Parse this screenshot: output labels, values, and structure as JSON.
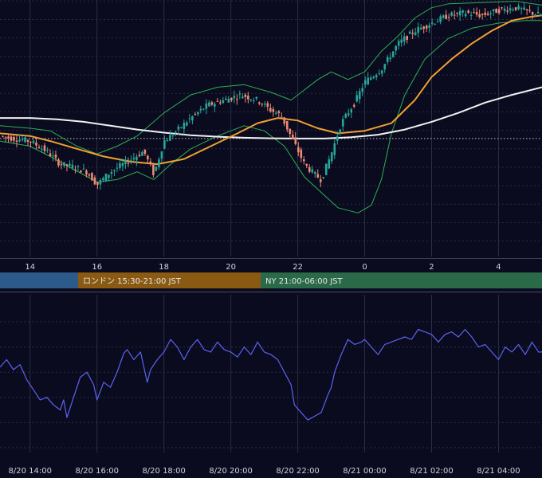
{
  "colors": {
    "background": "#0a0b1e",
    "grid": "#2a2d45",
    "candle_up": "#26a69a",
    "candle_down": "#ef8a74",
    "bollinger": "#2fae55",
    "ma_short": "#f0a030",
    "ma_long": "#f2f2f2",
    "oscillator": "#5b63f0",
    "session_tokyo": "#2c5a8a",
    "session_london": "#8a5a12",
    "session_ny": "#2a6a48"
  },
  "sessions": [
    {
      "label": "",
      "color": "#2c5a8a"
    },
    {
      "label": "ロンドン 15:30-21:00 JST",
      "color": "#8a5a12"
    },
    {
      "label": "NY 21:00-06:00 JST",
      "color": "#2a6a48"
    }
  ],
  "chart_data": [
    {
      "type": "candlestick",
      "title": "",
      "x_tick_labels": [
        "14",
        "16",
        "18",
        "20",
        "22",
        "0",
        "2",
        "4"
      ],
      "x_tick_hours": [
        14,
        16,
        18,
        20,
        22,
        24,
        26,
        28
      ],
      "x_range": [
        13.1,
        29.3
      ],
      "y_range": [
        0,
        100
      ],
      "grid": true,
      "reference_line_level": 46,
      "series": [
        {
          "name": "",
          "kind": "candle_close_path",
          "points": [
            [
              13.1,
              47
            ],
            [
              13.5,
              46
            ],
            [
              14.0,
              45
            ],
            [
              14.5,
              41
            ],
            [
              14.9,
              36
            ],
            [
              15.3,
              35
            ],
            [
              15.7,
              33
            ],
            [
              16.0,
              28
            ],
            [
              16.4,
              33
            ],
            [
              16.9,
              37
            ],
            [
              17.4,
              41
            ],
            [
              17.7,
              32
            ],
            [
              18.0,
              45
            ],
            [
              18.3,
              48
            ],
            [
              18.8,
              54
            ],
            [
              19.3,
              59
            ],
            [
              19.8,
              61
            ],
            [
              20.3,
              63
            ],
            [
              20.8,
              61
            ],
            [
              21.2,
              57
            ],
            [
              21.5,
              55
            ],
            [
              21.9,
              44
            ],
            [
              22.2,
              36
            ],
            [
              22.5,
              32
            ],
            [
              22.7,
              30
            ],
            [
              23.0,
              40
            ],
            [
              23.3,
              52
            ],
            [
              23.7,
              60
            ],
            [
              24.0,
              68
            ],
            [
              24.5,
              73
            ],
            [
              25.0,
              83
            ],
            [
              25.5,
              88
            ],
            [
              26.0,
              91
            ],
            [
              26.5,
              94
            ],
            [
              27.0,
              95
            ],
            [
              27.5,
              94
            ],
            [
              28.0,
              96
            ],
            [
              28.5,
              97
            ],
            [
              29.0,
              95
            ],
            [
              29.3,
              94
            ]
          ]
        },
        {
          "name": "",
          "kind": "bollinger_upper",
          "points": [
            [
              13.1,
              51
            ],
            [
              14.0,
              50
            ],
            [
              14.6,
              49
            ],
            [
              15.4,
              43
            ],
            [
              16.0,
              40
            ],
            [
              16.6,
              43
            ],
            [
              17.2,
              47
            ],
            [
              18.0,
              56
            ],
            [
              18.8,
              63
            ],
            [
              19.6,
              66
            ],
            [
              20.4,
              67
            ],
            [
              21.2,
              64
            ],
            [
              21.8,
              61
            ],
            [
              22.6,
              69
            ],
            [
              23.0,
              72
            ],
            [
              23.5,
              69
            ],
            [
              24.0,
              72
            ],
            [
              24.5,
              80
            ],
            [
              25.0,
              86
            ],
            [
              25.5,
              93
            ],
            [
              26.0,
              97
            ],
            [
              26.5,
              98.5
            ],
            [
              27.5,
              99
            ],
            [
              28.5,
              99.5
            ],
            [
              29.3,
              98
            ]
          ]
        },
        {
          "name": "",
          "kind": "bollinger_lower",
          "points": [
            [
              13.1,
              45
            ],
            [
              14.0,
              43
            ],
            [
              14.6,
              39
            ],
            [
              15.3,
              34
            ],
            [
              16.0,
              29
            ],
            [
              16.6,
              30
            ],
            [
              17.2,
              33
            ],
            [
              17.7,
              30
            ],
            [
              18.2,
              36
            ],
            [
              18.8,
              42
            ],
            [
              19.6,
              47
            ],
            [
              20.4,
              51
            ],
            [
              21.0,
              49
            ],
            [
              21.6,
              43
            ],
            [
              22.2,
              31
            ],
            [
              22.7,
              25
            ],
            [
              23.2,
              19
            ],
            [
              23.8,
              17
            ],
            [
              24.2,
              20
            ],
            [
              24.5,
              30
            ],
            [
              24.8,
              48
            ],
            [
              25.2,
              63
            ],
            [
              25.8,
              77
            ],
            [
              26.5,
              85
            ],
            [
              27.2,
              89
            ],
            [
              28.0,
              91
            ],
            [
              28.8,
              92
            ],
            [
              29.3,
              92
            ]
          ]
        },
        {
          "name": "",
          "kind": "ma_short",
          "points": [
            [
              13.1,
              48
            ],
            [
              14.0,
              47
            ],
            [
              14.6,
              45
            ],
            [
              15.4,
              42
            ],
            [
              16.2,
              39
            ],
            [
              17.0,
              37
            ],
            [
              17.8,
              36
            ],
            [
              18.6,
              38
            ],
            [
              19.4,
              43
            ],
            [
              20.2,
              48
            ],
            [
              20.8,
              52
            ],
            [
              21.4,
              54
            ],
            [
              22.0,
              53
            ],
            [
              22.6,
              50
            ],
            [
              23.2,
              48
            ],
            [
              24.0,
              49
            ],
            [
              24.8,
              52
            ],
            [
              25.5,
              61
            ],
            [
              26.0,
              70
            ],
            [
              26.6,
              77
            ],
            [
              27.2,
              83
            ],
            [
              27.8,
              88
            ],
            [
              28.4,
              92
            ],
            [
              29.0,
              93.5
            ],
            [
              29.3,
              94
            ]
          ]
        },
        {
          "name": "",
          "kind": "ma_long",
          "points": [
            [
              13.1,
              54
            ],
            [
              14.0,
              54
            ],
            [
              14.8,
              53.5
            ],
            [
              15.6,
              52.5
            ],
            [
              16.4,
              51
            ],
            [
              17.2,
              49.5
            ],
            [
              18.0,
              48.3
            ],
            [
              18.8,
              47.3
            ],
            [
              19.6,
              46.7
            ],
            [
              20.4,
              46.3
            ],
            [
              21.2,
              46.1
            ],
            [
              22.0,
              46
            ],
            [
              22.8,
              46
            ],
            [
              23.6,
              46.5
            ],
            [
              24.4,
              47.5
            ],
            [
              25.2,
              49.5
            ],
            [
              26.0,
              52.5
            ],
            [
              26.8,
              56
            ],
            [
              27.6,
              60
            ],
            [
              28.4,
              63
            ],
            [
              29.3,
              66
            ]
          ]
        }
      ]
    },
    {
      "type": "line",
      "title": "",
      "x_tick_labels": [
        "8/20 14:00",
        "8/20 16:00",
        "8/20 18:00",
        "8/20 20:00",
        "8/20 22:00",
        "8/21 00:00",
        "8/21 02:00",
        "8/21 04:00"
      ],
      "x_tick_hours": [
        14,
        16,
        18,
        20,
        22,
        24,
        26,
        28
      ],
      "x_range": [
        13.1,
        29.3
      ],
      "y_range": [
        0,
        100
      ],
      "grid": true,
      "series": [
        {
          "name": "",
          "points": [
            [
              13.1,
              64
            ],
            [
              13.3,
              70
            ],
            [
              13.5,
              62
            ],
            [
              13.7,
              66
            ],
            [
              13.9,
              54
            ],
            [
              14.1,
              46
            ],
            [
              14.3,
              38
            ],
            [
              14.5,
              40
            ],
            [
              14.7,
              34
            ],
            [
              14.9,
              30
            ],
            [
              15.0,
              38
            ],
            [
              15.1,
              24
            ],
            [
              15.3,
              40
            ],
            [
              15.5,
              56
            ],
            [
              15.7,
              60
            ],
            [
              15.9,
              50
            ],
            [
              16.0,
              38
            ],
            [
              16.2,
              52
            ],
            [
              16.4,
              48
            ],
            [
              16.6,
              60
            ],
            [
              16.8,
              75
            ],
            [
              16.9,
              78
            ],
            [
              17.1,
              70
            ],
            [
              17.3,
              76
            ],
            [
              17.5,
              52
            ],
            [
              17.6,
              62
            ],
            [
              17.8,
              70
            ],
            [
              18.0,
              76
            ],
            [
              18.2,
              86
            ],
            [
              18.4,
              80
            ],
            [
              18.6,
              70
            ],
            [
              18.8,
              80
            ],
            [
              19.0,
              86
            ],
            [
              19.2,
              78
            ],
            [
              19.4,
              76
            ],
            [
              19.6,
              84
            ],
            [
              19.8,
              78
            ],
            [
              20.0,
              76
            ],
            [
              20.2,
              72
            ],
            [
              20.4,
              80
            ],
            [
              20.6,
              74
            ],
            [
              20.8,
              84
            ],
            [
              21.0,
              76
            ],
            [
              21.2,
              74
            ],
            [
              21.4,
              70
            ],
            [
              21.6,
              60
            ],
            [
              21.8,
              50
            ],
            [
              21.9,
              34
            ],
            [
              22.1,
              28
            ],
            [
              22.3,
              22
            ],
            [
              22.5,
              25
            ],
            [
              22.7,
              28
            ],
            [
              22.9,
              42
            ],
            [
              23.0,
              48
            ],
            [
              23.1,
              60
            ],
            [
              23.3,
              74
            ],
            [
              23.5,
              86
            ],
            [
              23.7,
              82
            ],
            [
              23.9,
              84
            ],
            [
              24.0,
              86
            ],
            [
              24.2,
              80
            ],
            [
              24.4,
              74
            ],
            [
              24.6,
              82
            ],
            [
              24.8,
              84
            ],
            [
              25.0,
              86
            ],
            [
              25.2,
              88
            ],
            [
              25.4,
              86
            ],
            [
              25.6,
              94
            ],
            [
              25.8,
              92
            ],
            [
              26.0,
              90
            ],
            [
              26.2,
              84
            ],
            [
              26.4,
              90
            ],
            [
              26.6,
              92
            ],
            [
              26.8,
              88
            ],
            [
              27.0,
              94
            ],
            [
              27.2,
              88
            ],
            [
              27.4,
              80
            ],
            [
              27.6,
              82
            ],
            [
              27.8,
              76
            ],
            [
              28.0,
              70
            ],
            [
              28.2,
              80
            ],
            [
              28.4,
              76
            ],
            [
              28.6,
              82
            ],
            [
              28.8,
              74
            ],
            [
              29.0,
              84
            ],
            [
              29.2,
              76
            ],
            [
              29.3,
              76
            ]
          ]
        }
      ]
    }
  ]
}
